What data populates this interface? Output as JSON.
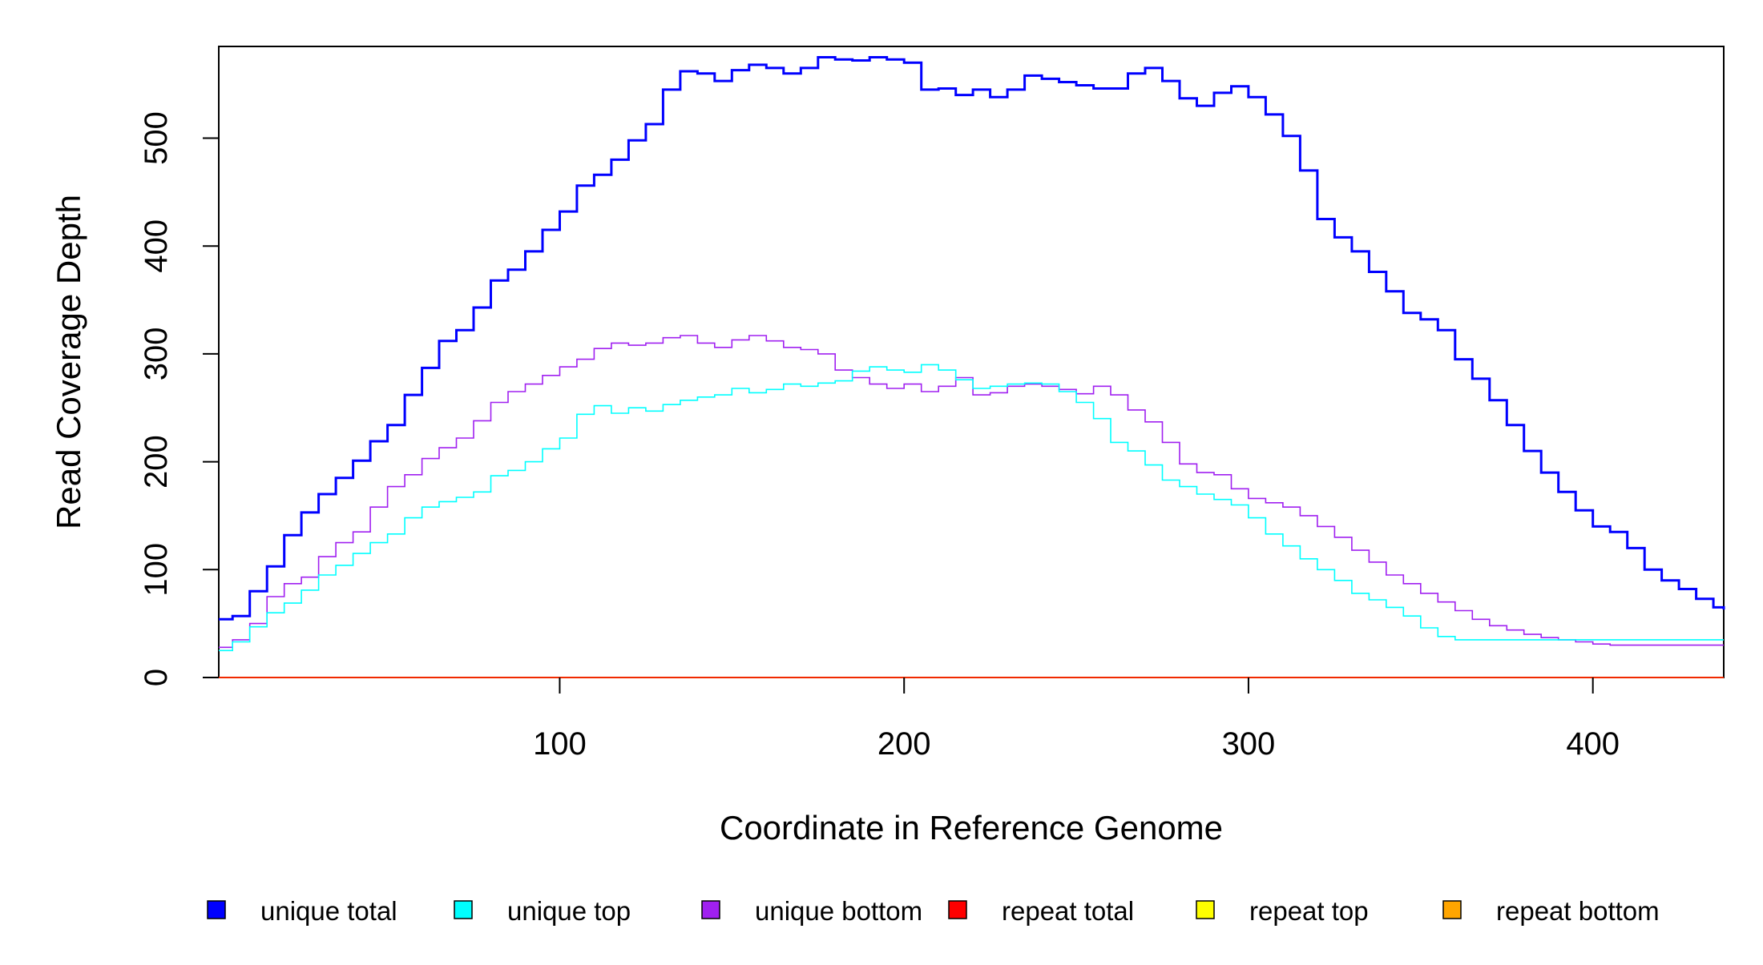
{
  "chart_data": {
    "type": "line",
    "title": "",
    "xlabel": "Coordinate in Reference Genome",
    "ylabel": "Read Coverage Depth",
    "xlim": [
      1,
      438
    ],
    "ylim": [
      0,
      585
    ],
    "xticks": [
      100,
      200,
      300,
      400
    ],
    "yticks": [
      0,
      100,
      200,
      300,
      400,
      500
    ],
    "grid": false,
    "legend": "bottom",
    "step": true,
    "series": [
      {
        "name": "unique total",
        "color": "#0000FF",
        "x": [
          1,
          5,
          10,
          15,
          20,
          25,
          30,
          35,
          40,
          45,
          50,
          55,
          60,
          65,
          70,
          75,
          80,
          85,
          90,
          95,
          100,
          105,
          110,
          115,
          120,
          125,
          130,
          135,
          140,
          145,
          150,
          155,
          160,
          165,
          170,
          175,
          180,
          185,
          190,
          195,
          200,
          205,
          210,
          215,
          220,
          225,
          230,
          235,
          240,
          245,
          250,
          255,
          260,
          265,
          270,
          275,
          280,
          285,
          290,
          295,
          300,
          305,
          310,
          315,
          320,
          325,
          330,
          335,
          340,
          345,
          350,
          355,
          360,
          365,
          370,
          375,
          380,
          385,
          390,
          395,
          400,
          405,
          410,
          415,
          420,
          425,
          430,
          435,
          438
        ],
        "values": [
          54,
          57,
          80,
          103,
          132,
          153,
          170,
          185,
          201,
          219,
          234,
          262,
          287,
          312,
          322,
          343,
          368,
          378,
          395,
          415,
          432,
          456,
          466,
          480,
          498,
          513,
          545,
          562,
          560,
          553,
          563,
          568,
          565,
          560,
          565,
          575,
          573,
          572,
          575,
          573,
          570,
          545,
          546,
          540,
          545,
          538,
          545,
          558,
          555,
          552,
          549,
          546,
          546,
          560,
          565,
          553,
          537,
          530,
          542,
          548,
          538,
          522,
          502,
          470,
          425,
          408,
          395,
          376,
          358,
          338,
          332,
          322,
          295,
          277,
          257,
          234,
          210,
          190,
          172,
          155,
          140,
          135,
          120,
          100,
          90,
          82,
          73,
          65,
          63
        ]
      },
      {
        "name": "unique top",
        "color": "#00FFFF",
        "x": [
          1,
          5,
          10,
          15,
          20,
          25,
          30,
          35,
          40,
          45,
          50,
          55,
          60,
          65,
          70,
          75,
          80,
          85,
          90,
          95,
          100,
          105,
          110,
          115,
          120,
          125,
          130,
          135,
          140,
          145,
          150,
          155,
          160,
          165,
          170,
          175,
          180,
          185,
          190,
          195,
          200,
          205,
          210,
          215,
          220,
          225,
          230,
          235,
          240,
          245,
          250,
          255,
          260,
          265,
          270,
          275,
          280,
          285,
          290,
          295,
          300,
          305,
          310,
          315,
          320,
          325,
          330,
          335,
          340,
          345,
          350,
          355,
          360,
          365,
          370,
          375,
          380,
          385,
          390,
          395,
          400,
          405,
          410,
          415,
          420,
          425,
          430,
          435,
          438
        ],
        "values": [
          25,
          33,
          47,
          60,
          69,
          81,
          95,
          104,
          115,
          125,
          133,
          148,
          158,
          163,
          167,
          172,
          187,
          192,
          200,
          212,
          222,
          244,
          252,
          245,
          250,
          247,
          253,
          257,
          260,
          262,
          268,
          264,
          267,
          272,
          270,
          273,
          275,
          284,
          288,
          285,
          283,
          290,
          285,
          276,
          268,
          270,
          272,
          273,
          272,
          265,
          255,
          240,
          218,
          210,
          197,
          183,
          177,
          170,
          165,
          160,
          148,
          133,
          122,
          110,
          100,
          90,
          78,
          72,
          65,
          57,
          46,
          38,
          35,
          35,
          35,
          35,
          35,
          35,
          35,
          35,
          35,
          35,
          35,
          35,
          35,
          35,
          35,
          35,
          35
        ]
      },
      {
        "name": "unique bottom",
        "color": "#A020F0",
        "x": [
          1,
          5,
          10,
          15,
          20,
          25,
          30,
          35,
          40,
          45,
          50,
          55,
          60,
          65,
          70,
          75,
          80,
          85,
          90,
          95,
          100,
          105,
          110,
          115,
          120,
          125,
          130,
          135,
          140,
          145,
          150,
          155,
          160,
          165,
          170,
          175,
          180,
          185,
          190,
          195,
          200,
          205,
          210,
          215,
          220,
          225,
          230,
          235,
          240,
          245,
          250,
          255,
          260,
          265,
          270,
          275,
          280,
          285,
          290,
          295,
          300,
          305,
          310,
          315,
          320,
          325,
          330,
          335,
          340,
          345,
          350,
          355,
          360,
          365,
          370,
          375,
          380,
          385,
          390,
          395,
          400,
          405,
          410,
          415,
          420,
          425,
          430,
          435,
          438
        ],
        "values": [
          28,
          35,
          50,
          75,
          87,
          93,
          112,
          125,
          135,
          158,
          177,
          188,
          203,
          213,
          222,
          238,
          255,
          265,
          272,
          280,
          288,
          295,
          305,
          310,
          308,
          310,
          315,
          317,
          310,
          306,
          313,
          317,
          312,
          306,
          304,
          300,
          285,
          278,
          272,
          268,
          272,
          265,
          270,
          278,
          262,
          264,
          270,
          272,
          270,
          267,
          263,
          270,
          262,
          248,
          237,
          218,
          198,
          190,
          188,
          175,
          166,
          162,
          158,
          150,
          140,
          130,
          118,
          107,
          95,
          87,
          78,
          70,
          62,
          54,
          48,
          44,
          40,
          37,
          35,
          33,
          31,
          30,
          30,
          30,
          30,
          30,
          30,
          30,
          30
        ]
      },
      {
        "name": "repeat total",
        "color": "#FF0000",
        "x": [
          1,
          438
        ],
        "values": [
          0,
          0
        ]
      },
      {
        "name": "repeat top",
        "color": "#FFFF00",
        "x": [
          1,
          438
        ],
        "values": [
          0,
          0
        ]
      },
      {
        "name": "repeat bottom",
        "color": "#FFA500",
        "x": [
          1,
          438
        ],
        "values": [
          0,
          0
        ]
      }
    ]
  }
}
